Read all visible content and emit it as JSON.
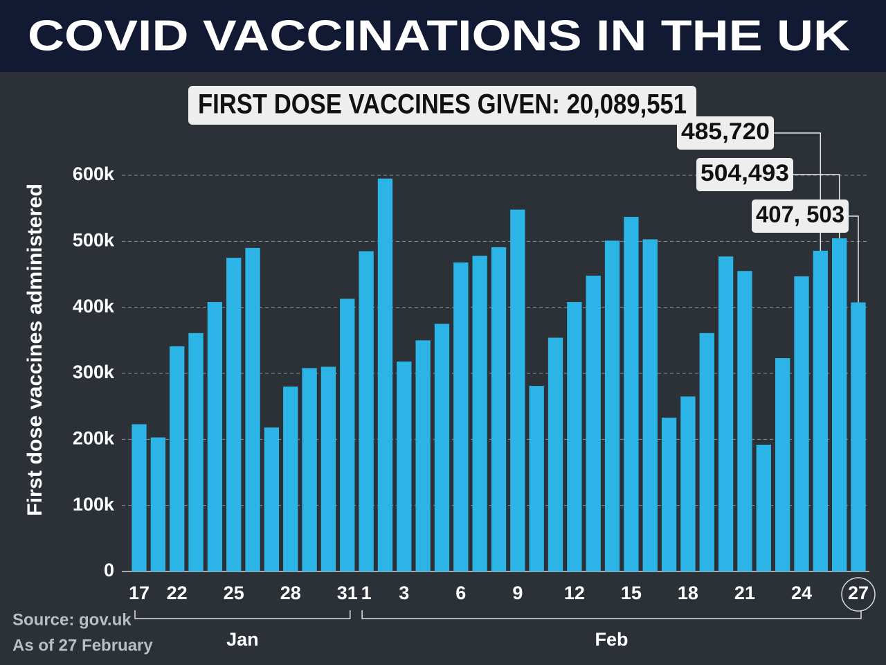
{
  "chart_data": {
    "type": "bar",
    "title": "COVID VACCINATIONS IN THE UK",
    "subtitle": "FIRST DOSE VACCINES GIVEN: 20,089,551",
    "y_label": "First dose vaccines administered",
    "source": "Source: gov.uk",
    "note": "As of 27 February",
    "groups": [
      {
        "label": "Jan",
        "from": 0,
        "to": 11
      },
      {
        "label": "Feb",
        "from": 12,
        "to": 38
      }
    ],
    "categories": [
      "17",
      null,
      "22",
      null,
      null,
      "25",
      null,
      null,
      "28",
      null,
      null,
      "31",
      "1",
      null,
      "3",
      null,
      null,
      "6",
      null,
      null,
      "9",
      null,
      null,
      "12",
      null,
      null,
      "15",
      null,
      null,
      "18",
      null,
      null,
      "21",
      null,
      null,
      "24",
      null,
      null,
      "27"
    ],
    "values": [
      223,
      203,
      341,
      361,
      408,
      475,
      490,
      218,
      280,
      308,
      310,
      413,
      485,
      595,
      318,
      350,
      375,
      468,
      478,
      491,
      548,
      281,
      354,
      408,
      448,
      501,
      537,
      503,
      233,
      265,
      361,
      477,
      455,
      192,
      323,
      447,
      485.72,
      504.493,
      407.503
    ],
    "value_labels": [
      null,
      null,
      null,
      null,
      null,
      null,
      null,
      null,
      null,
      null,
      null,
      null,
      null,
      null,
      null,
      null,
      null,
      null,
      null,
      null,
      null,
      null,
      null,
      null,
      null,
      null,
      null,
      null,
      null,
      null,
      null,
      null,
      null,
      null,
      null,
      null,
      "485,720",
      "504,493",
      "407, 503"
    ],
    "color": "#2db4e6",
    "ylim": [
      0,
      600
    ],
    "yticks": [
      0,
      {
        "value": 100,
        "label": "100k"
      },
      {
        "value": 200,
        "label": "200k"
      },
      {
        "value": 300,
        "label": "300k"
      },
      {
        "value": 400,
        "label": "400k"
      },
      {
        "value": 500,
        "label": "500k"
      },
      {
        "value": 600,
        "label": "600k"
      }
    ],
    "grid": true
  }
}
